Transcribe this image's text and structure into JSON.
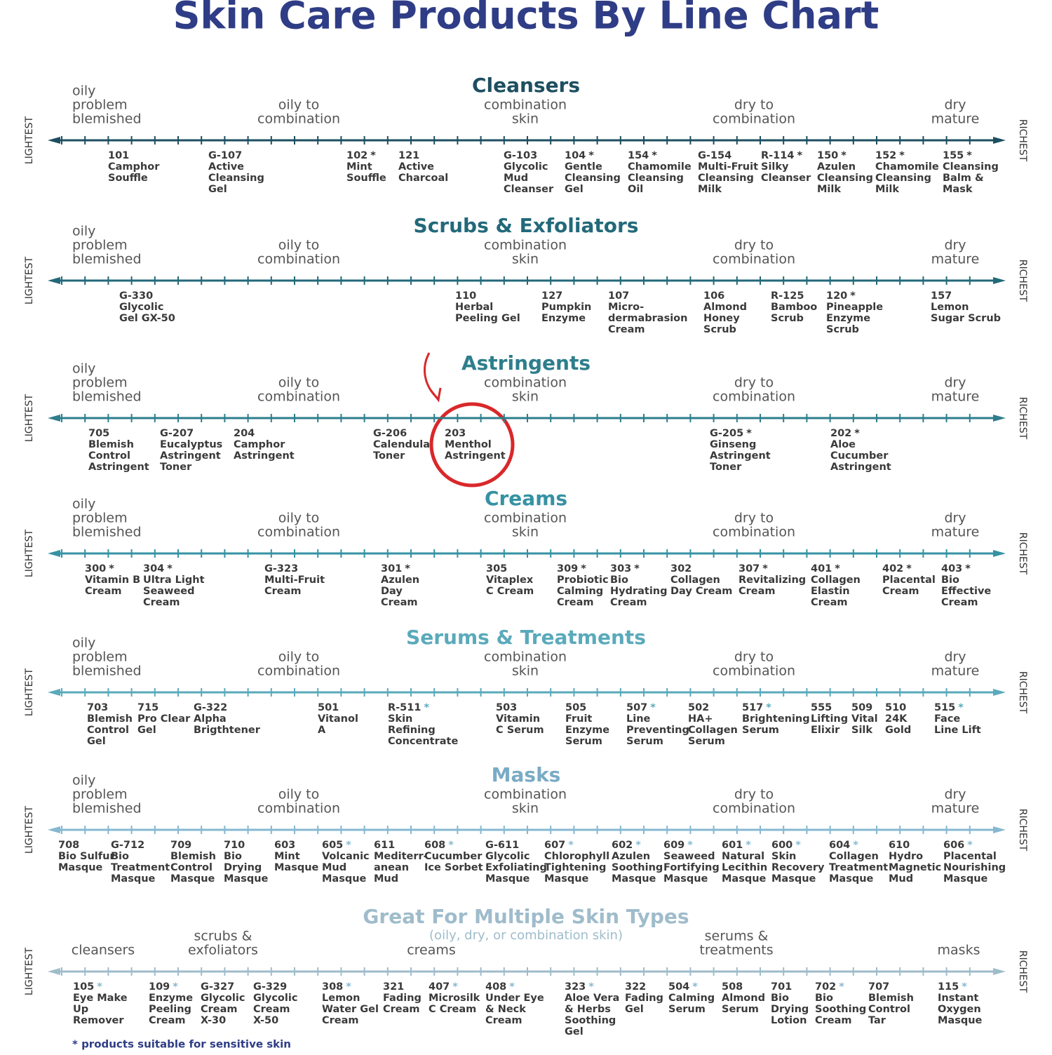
{
  "title": "Skin Care Products By Line Chart",
  "axis_start": "LIGHTEST",
  "axis_end": "RICHEST",
  "sections": [
    {
      "title": "Cleansers",
      "zones": [
        [
          "oily",
          "problem",
          "blemished"
        ],
        [
          "oily to",
          "combination"
        ],
        [
          "combination",
          "skin"
        ],
        [
          "dry to",
          "combination"
        ],
        [
          "dry",
          "mature"
        ]
      ],
      "products": [
        {
          "code": "101",
          "lines": [
            "Camphor",
            "Souffle"
          ]
        },
        {
          "code": "G-107",
          "lines": [
            "Active",
            "Cleansing",
            "Gel"
          ]
        },
        {
          "code": "102",
          "star": "*",
          "lines": [
            "Mint",
            "Souffle"
          ]
        },
        {
          "code": "121",
          "lines": [
            "Active",
            "Charcoal"
          ]
        },
        {
          "code": "G-103",
          "lines": [
            "Glycolic",
            "Mud",
            "Cleanser"
          ]
        },
        {
          "code": "104",
          "star": "*",
          "lines": [
            "Gentle",
            "Cleansing",
            "Gel"
          ]
        },
        {
          "code": "154",
          "star": "*",
          "lines": [
            "Chamomile",
            "Cleansing",
            "Oil"
          ]
        },
        {
          "code": "G-154",
          "lines": [
            "Multi-Fruit",
            "Cleansing",
            "Milk"
          ]
        },
        {
          "code": "R-114",
          "star": "*",
          "lines": [
            "Silky",
            "Cleanser"
          ]
        },
        {
          "code": "150",
          "star": "*",
          "lines": [
            "Azulen",
            "Cleansing",
            "Milk"
          ]
        },
        {
          "code": "152",
          "star": "*",
          "lines": [
            "Chamomile",
            "Cleansing",
            "Milk"
          ]
        },
        {
          "code": "155",
          "star": "*",
          "lines": [
            "Cleansing",
            "Balm &",
            "Mask"
          ]
        }
      ]
    },
    {
      "title": "Scrubs & Exfoliators",
      "zones": [
        [
          "oily",
          "problem",
          "blemished"
        ],
        [
          "oily to",
          "combination"
        ],
        [
          "combination",
          "skin"
        ],
        [
          "dry to",
          "combination"
        ],
        [
          "dry",
          "mature"
        ]
      ],
      "products": [
        {
          "code": "G-330",
          "lines": [
            "Glycolic",
            "Gel GX-50"
          ]
        },
        {
          "code": "110",
          "lines": [
            "Herbal",
            "Peeling Gel"
          ]
        },
        {
          "code": "127",
          "lines": [
            "Pumpkin",
            "Enzyme"
          ]
        },
        {
          "code": "107",
          "lines": [
            "Micro-",
            "dermabrasion",
            "Cream"
          ]
        },
        {
          "code": "106",
          "lines": [
            "Almond",
            "Honey",
            "Scrub"
          ]
        },
        {
          "code": "R-125",
          "lines": [
            "Bamboo",
            "Scrub"
          ]
        },
        {
          "code": "120",
          "star": "*",
          "lines": [
            "Pineapple",
            "Enzyme",
            "Scrub"
          ]
        },
        {
          "code": "157",
          "lines": [
            "Lemon",
            "Sugar Scrub"
          ]
        }
      ]
    },
    {
      "title": "Astringents",
      "zones": [
        [
          "oily",
          "problem",
          "blemished"
        ],
        [
          "oily to",
          "combination"
        ],
        [
          "combination",
          "skin"
        ],
        [
          "dry to",
          "combination"
        ],
        [
          "dry",
          "mature"
        ]
      ],
      "products": [
        {
          "code": "705",
          "lines": [
            "Blemish",
            "Control",
            "Astringent"
          ]
        },
        {
          "code": "G-207",
          "lines": [
            "Eucalyptus",
            "Astringent",
            "Toner"
          ]
        },
        {
          "code": "204",
          "lines": [
            "Camphor",
            "Astringent"
          ]
        },
        {
          "code": "G-206",
          "lines": [
            "Calendula",
            "Toner"
          ]
        },
        {
          "code": "203",
          "lines": [
            "Menthol",
            "Astringent"
          ]
        },
        {
          "code": "G-205",
          "star": "*",
          "lines": [
            "Ginseng",
            "Astringent",
            "Toner"
          ]
        },
        {
          "code": "202",
          "star": "*",
          "lines": [
            "Aloe",
            "Cucumber",
            "Astringent"
          ]
        }
      ]
    },
    {
      "title": "Creams",
      "zones": [
        [
          "oily",
          "problem",
          "blemished"
        ],
        [
          "oily to",
          "combination"
        ],
        [
          "combination",
          "skin"
        ],
        [
          "dry to",
          "combination"
        ],
        [
          "dry",
          "mature"
        ]
      ],
      "products": [
        {
          "code": "300",
          "star": "*",
          "lines": [
            "Vitamin B",
            "Cream"
          ]
        },
        {
          "code": "304",
          "star": "*",
          "lines": [
            "Ultra Light",
            "Seaweed",
            "Cream"
          ]
        },
        {
          "code": "G-323",
          "lines": [
            "Multi-Fruit",
            "Cream"
          ]
        },
        {
          "code": "301",
          "star": "*",
          "lines": [
            "Azulen",
            "Day",
            "Cream"
          ]
        },
        {
          "code": "305",
          "lines": [
            "Vitaplex",
            "C Cream"
          ]
        },
        {
          "code": "309",
          "star": "*",
          "lines": [
            "Probiotic",
            "Calming",
            "Cream"
          ]
        },
        {
          "code": "303",
          "star": "*",
          "lines": [
            "Bio",
            "Hydrating",
            "Cream"
          ]
        },
        {
          "code": "302",
          "lines": [
            "Collagen",
            "Day Cream"
          ]
        },
        {
          "code": "307",
          "star": "*",
          "lines": [
            "Revitalizing",
            "Cream"
          ]
        },
        {
          "code": "401",
          "star": "*",
          "lines": [
            "Collagen",
            "Elastin",
            "Cream"
          ]
        },
        {
          "code": "402",
          "star": "*",
          "lines": [
            "Placental",
            "Cream"
          ]
        },
        {
          "code": "403",
          "star": "*",
          "lines": [
            "Bio",
            "Effective",
            "Cream"
          ]
        }
      ]
    },
    {
      "title": "Serums & Treatments",
      "zones": [
        [
          "oily",
          "problem",
          "blemished"
        ],
        [
          "oily to",
          "combination"
        ],
        [
          "combination",
          "skin"
        ],
        [
          "dry to",
          "combination"
        ],
        [
          "dry",
          "mature"
        ]
      ],
      "products": [
        {
          "code": "703",
          "lines": [
            "Blemish",
            "Control",
            "Gel"
          ]
        },
        {
          "code": "715",
          "lines": [
            "Pro Clear",
            "Gel"
          ]
        },
        {
          "code": "G-322",
          "lines": [
            "Alpha",
            "Brigthtener"
          ]
        },
        {
          "code": "501",
          "lines": [
            "Vitanol",
            "A"
          ]
        },
        {
          "code": "R-511",
          "star": "*",
          "lines": [
            "Skin",
            "Refining",
            "Concentrate"
          ]
        },
        {
          "code": "503",
          "lines": [
            "Vitamin",
            "C Serum"
          ]
        },
        {
          "code": "505",
          "lines": [
            "Fruit",
            "Enzyme",
            "Serum"
          ]
        },
        {
          "code": "507",
          "star": "*",
          "lines": [
            "Line",
            "Preventing",
            "Serum"
          ]
        },
        {
          "code": "502",
          "lines": [
            "HA+",
            "Collagen",
            "Serum"
          ]
        },
        {
          "code": "517",
          "star": "*",
          "lines": [
            "Brightening",
            "Serum"
          ]
        },
        {
          "code": "555",
          "lines": [
            "Lifting",
            "Elixir"
          ]
        },
        {
          "code": "509",
          "lines": [
            "Vital",
            "Silk"
          ]
        },
        {
          "code": "510",
          "lines": [
            "24K",
            "Gold"
          ]
        },
        {
          "code": "515",
          "star": "*",
          "lines": [
            "Face",
            "Line Lift"
          ]
        }
      ]
    },
    {
      "title": "Masks",
      "zones": [
        [
          "oily",
          "problem",
          "blemished"
        ],
        [
          "oily to",
          "combination"
        ],
        [
          "combination",
          "skin"
        ],
        [
          "dry to",
          "combination"
        ],
        [
          "dry",
          "mature"
        ]
      ],
      "products": [
        {
          "code": "708",
          "lines": [
            "Bio Sulfur",
            "Masque"
          ]
        },
        {
          "code": "G-712",
          "lines": [
            "Bio",
            "Treatment",
            "Masque"
          ]
        },
        {
          "code": "709",
          "lines": [
            "Blemish",
            "Control",
            "Masque"
          ]
        },
        {
          "code": "710",
          "lines": [
            "Bio",
            "Drying",
            "Masque"
          ]
        },
        {
          "code": "603",
          "lines": [
            "Mint",
            "Masque"
          ]
        },
        {
          "code": "605",
          "star": "*",
          "lines": [
            "Volcanic",
            "Mud",
            "Masque"
          ]
        },
        {
          "code": "611",
          "lines": [
            "Mediterr-",
            "anean",
            "Mud"
          ]
        },
        {
          "code": "608",
          "star": "*",
          "lines": [
            "Cucumber",
            "Ice Sorbet"
          ]
        },
        {
          "code": "G-611",
          "lines": [
            "Glycolic",
            "Exfoliating",
            "Masque"
          ]
        },
        {
          "code": "607",
          "star": "*",
          "lines": [
            "Chlorophyll",
            "Tightening",
            "Masque"
          ]
        },
        {
          "code": "602",
          "star": "*",
          "lines": [
            "Azulen",
            "Soothing",
            "Masque"
          ]
        },
        {
          "code": "609",
          "star": "*",
          "lines": [
            "Seaweed",
            "Fortifying",
            "Masque"
          ]
        },
        {
          "code": "601",
          "star": "*",
          "lines": [
            "Natural",
            "Lecithin",
            "Masque"
          ]
        },
        {
          "code": "600",
          "star": "*",
          "lines": [
            "Skin",
            "Recovery",
            "Masque"
          ]
        },
        {
          "code": "604",
          "star": "*",
          "lines": [
            "Collagen",
            "Treatment",
            "Masque"
          ]
        },
        {
          "code": "610",
          "lines": [
            "Hydro",
            "Magnetic",
            "Mud"
          ]
        },
        {
          "code": "606",
          "star": "*",
          "lines": [
            "Placental",
            "Nourishing",
            "Masque"
          ]
        }
      ]
    },
    {
      "title": "Great For Multiple Skin Types",
      "subtitle": "(oily, dry, or combination skin)",
      "zones": [
        [
          "cleansers"
        ],
        [
          "scrubs &",
          "exfoliators"
        ],
        [
          "creams"
        ],
        [
          "serums &",
          "treatments"
        ],
        [
          "masks"
        ]
      ],
      "products": [
        {
          "code": "105",
          "star": "*",
          "lines": [
            "Eye Make",
            "Up",
            "Remover"
          ]
        },
        {
          "code": "109",
          "star": "*",
          "lines": [
            "Enzyme",
            "Peeling",
            "Cream"
          ]
        },
        {
          "code": "G-327",
          "lines": [
            "Glycolic",
            "Cream",
            "X-30"
          ]
        },
        {
          "code": "G-329",
          "lines": [
            "Glycolic",
            "Cream",
            "X-50"
          ]
        },
        {
          "code": "308",
          "star": "*",
          "lines": [
            "Lemon",
            "Water Gel",
            "Cream"
          ]
        },
        {
          "code": "321",
          "lines": [
            "Fading",
            "Cream"
          ]
        },
        {
          "code": "407",
          "star": "*",
          "lines": [
            "Microsilk",
            "C Cream"
          ]
        },
        {
          "code": "408",
          "star": "*",
          "lines": [
            "Under Eye",
            "& Neck",
            "Cream"
          ]
        },
        {
          "code": "323",
          "star": "*",
          "lines": [
            "Aloe Vera",
            "& Herbs",
            "Soothing",
            "Gel"
          ]
        },
        {
          "code": "322",
          "lines": [
            "Fading",
            "Gel"
          ]
        },
        {
          "code": "504",
          "star": "*",
          "lines": [
            "Calming",
            "Serum"
          ]
        },
        {
          "code": "508",
          "lines": [
            "Almond",
            "Serum"
          ]
        },
        {
          "code": "701",
          "lines": [
            "Bio",
            "Drying",
            "Lotion"
          ]
        },
        {
          "code": "702",
          "star": "*",
          "lines": [
            "Bio",
            "Soothing",
            "Cream"
          ]
        },
        {
          "code": "707",
          "lines": [
            "Blemish",
            "Control",
            "Tar"
          ]
        },
        {
          "code": "115",
          "star": "*",
          "lines": [
            "Instant",
            "Oxygen",
            "Masque"
          ]
        }
      ]
    }
  ],
  "footnote": "* products suitable for sensitive skin"
}
